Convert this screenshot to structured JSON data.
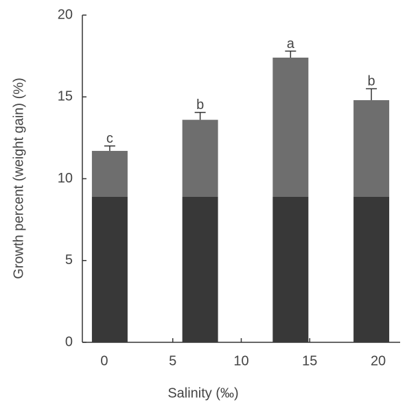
{
  "chart_data": {
    "type": "bar",
    "x_label": "Salinity (‰)",
    "y_label": "Growth percent (weight gain) (%)",
    "x": [
      0.4,
      7,
      13.6,
      19.5
    ],
    "series": [
      {
        "name": "Growth percent",
        "color": "#555555",
        "values": [
          11.7,
          13.6,
          17.4,
          14.8
        ],
        "errors": [
          0.3,
          0.45,
          0.4,
          0.7
        ],
        "annotations": [
          "c",
          "b",
          "a",
          "b"
        ]
      }
    ],
    "xlim": [
      -1.6,
      21.6
    ],
    "xticks": [
      0,
      5,
      10,
      15,
      20
    ],
    "ylim": [
      0,
      20
    ],
    "yticks": [
      0,
      5,
      10,
      15,
      20
    ]
  }
}
